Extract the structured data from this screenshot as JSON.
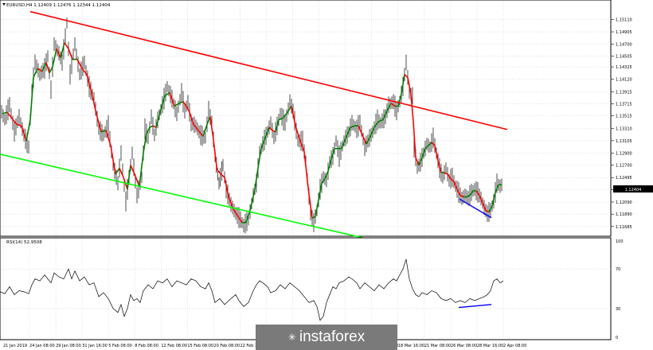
{
  "chart_data": [
    {
      "type": "line",
      "title": "EURUSD,H4 1.12409 1.12476 1.12344 1.12404",
      "ylim": [
        1.1159,
        1.153
      ],
      "y_ticks": [
        "1.15110",
        "1.14905",
        "1.14700",
        "1.14505",
        "1.14325",
        "1.14120",
        "1.13915",
        "1.13715",
        "1.13515",
        "1.13310",
        "1.13105",
        "1.12900",
        "1.12700",
        "1.12495",
        "1.12295",
        "1.12090",
        "1.11890",
        "1.11685"
      ],
      "x_ticks": [
        "21 Jan 2019",
        "24 Jan 08:00",
        "29 Jan 08:00",
        "31 Jan 16:00",
        "5 Feb 08:00",
        "8 Feb 08:00",
        "12 Feb 08:00",
        "15 Feb 08:00",
        "20 Feb 08:00",
        "22 Feb 16:00",
        "27 Feb 16:00",
        "4 Mar 08:00",
        "6 Mar 16:00",
        "11 Mar 08:00",
        "14 Mar 00:00",
        "18 Mar 16:00",
        "21 Mar 08:00",
        "26 Mar 08:00",
        "28 Mar 16:00",
        "2 Apr 08:00"
      ],
      "current_price": "1.12404",
      "price_path": [
        [
          0,
          1.1365
        ],
        [
          6,
          1.1345
        ],
        [
          12,
          1.137
        ],
        [
          18,
          1.1325
        ],
        [
          24,
          1.135
        ],
        [
          30,
          1.132
        ],
        [
          36,
          1.13
        ],
        [
          40,
          1.139
        ],
        [
          44,
          1.144
        ],
        [
          50,
          1.142
        ],
        [
          56,
          1.143
        ],
        [
          60,
          1.145
        ],
        [
          64,
          1.1395
        ],
        [
          68,
          1.147
        ],
        [
          74,
          1.1455
        ],
        [
          78,
          1.144
        ],
        [
          84,
          1.1505
        ],
        [
          88,
          1.142
        ],
        [
          94,
          1.147
        ],
        [
          100,
          1.142
        ],
        [
          106,
          1.144
        ],
        [
          112,
          1.14
        ],
        [
          118,
          1.138
        ],
        [
          124,
          1.133
        ],
        [
          130,
          1.132
        ],
        [
          136,
          1.1335
        ],
        [
          142,
          1.127
        ],
        [
          148,
          1.124
        ],
        [
          152,
          1.129
        ],
        [
          158,
          1.121
        ],
        [
          162,
          1.125
        ],
        [
          166,
          1.129
        ],
        [
          172,
          1.122
        ],
        [
          178,
          1.125
        ],
        [
          182,
          1.133
        ],
        [
          186,
          1.1315
        ],
        [
          190,
          1.135
        ],
        [
          194,
          1.132
        ],
        [
          198,
          1.1345
        ],
        [
          204,
          1.137
        ],
        [
          210,
          1.14
        ],
        [
          216,
          1.138
        ],
        [
          222,
          1.1355
        ],
        [
          228,
          1.139
        ],
        [
          232,
          1.136
        ],
        [
          236,
          1.1375
        ],
        [
          240,
          1.134
        ],
        [
          246,
          1.1335
        ],
        [
          252,
          1.132
        ],
        [
          258,
          1.1315
        ],
        [
          262,
          1.136
        ],
        [
          266,
          1.134
        ],
        [
          270,
          1.1285
        ],
        [
          275,
          1.124
        ],
        [
          280,
          1.127
        ],
        [
          284,
          1.123
        ],
        [
          290,
          1.1205
        ],
        [
          296,
          1.119
        ],
        [
          302,
          1.118
        ],
        [
          306,
          1.117
        ],
        [
          312,
          1.118
        ],
        [
          318,
          1.122
        ],
        [
          322,
          1.124
        ],
        [
          326,
          1.129
        ],
        [
          330,
          1.1305
        ],
        [
          336,
          1.1325
        ],
        [
          340,
          1.134
        ],
        [
          344,
          1.1315
        ],
        [
          348,
          1.1335
        ],
        [
          352,
          1.1355
        ],
        [
          358,
          1.134
        ],
        [
          364,
          1.1375
        ],
        [
          368,
          1.136
        ],
        [
          374,
          1.131
        ],
        [
          380,
          1.131
        ],
        [
          384,
          1.1275
        ],
        [
          390,
          1.119
        ],
        [
          394,
          1.1175
        ],
        [
          398,
          1.1195
        ],
        [
          402,
          1.123
        ],
        [
          406,
          1.125
        ],
        [
          410,
          1.1245
        ],
        [
          414,
          1.1275
        ],
        [
          418,
          1.1285
        ],
        [
          422,
          1.131
        ],
        [
          426,
          1.1285
        ],
        [
          432,
          1.131
        ],
        [
          438,
          1.1325
        ],
        [
          442,
          1.134
        ],
        [
          448,
          1.133
        ],
        [
          452,
          1.134
        ],
        [
          458,
          1.13
        ],
        [
          462,
          1.131
        ],
        [
          468,
          1.1325
        ],
        [
          474,
          1.1345
        ],
        [
          478,
          1.134
        ],
        [
          484,
          1.135
        ],
        [
          488,
          1.137
        ],
        [
          494,
          1.1375
        ],
        [
          498,
          1.136
        ],
        [
          502,
          1.1375
        ],
        [
          506,
          1.14
        ],
        [
          510,
          1.144
        ],
        [
          514,
          1.139
        ],
        [
          518,
          1.1385
        ],
        [
          520,
          1.13
        ],
        [
          524,
          1.1265
        ],
        [
          528,
          1.1275
        ],
        [
          532,
          1.129
        ],
        [
          536,
          1.1305
        ],
        [
          540,
          1.13
        ],
        [
          544,
          1.1315
        ],
        [
          548,
          1.129
        ],
        [
          552,
          1.1265
        ],
        [
          556,
          1.125
        ],
        [
          560,
          1.1265
        ],
        [
          564,
          1.1245
        ],
        [
          568,
          1.125
        ],
        [
          572,
          1.1235
        ],
        [
          576,
          1.1225
        ],
        [
          580,
          1.1215
        ],
        [
          584,
          1.122
        ],
        [
          588,
          1.1215
        ],
        [
          592,
          1.1225
        ],
        [
          596,
          1.123
        ],
        [
          600,
          1.1225
        ],
        [
          604,
          1.1215
        ],
        [
          608,
          1.12
        ],
        [
          612,
          1.119
        ],
        [
          616,
          1.1195
        ],
        [
          620,
          1.121
        ],
        [
          624,
          1.124
        ],
        [
          628,
          1.1235
        ],
        [
          632,
          1.124
        ]
      ],
      "channel_top": [
        [
          38,
          1.1524
        ],
        [
          637,
          1.1329
        ]
      ],
      "channel_bottom": [
        [
          0,
          1.1288
        ],
        [
          455,
          1.115
        ]
      ],
      "divergence_price": [
        [
          577,
          1.1214
        ],
        [
          617,
          1.1183
        ]
      ],
      "colors": {
        "upper_line": "#ff0000",
        "lower_line": "#00ff00",
        "divergence": "#0000ff",
        "ma_up": "#008000",
        "ma_down": "#ff0000",
        "price": "#000000",
        "badge_bg": "#000000",
        "badge_text": "#ffffff"
      }
    },
    {
      "type": "line",
      "title": "RSI(14) 52.9508",
      "ylim": [
        0,
        100
      ],
      "y_ticks": [
        "100",
        "70",
        "30",
        "0"
      ],
      "rsi_path": [
        [
          0,
          47
        ],
        [
          6,
          45
        ],
        [
          12,
          52
        ],
        [
          18,
          44
        ],
        [
          24,
          48
        ],
        [
          30,
          47
        ],
        [
          36,
          45
        ],
        [
          40,
          54
        ],
        [
          44,
          60
        ],
        [
          50,
          58
        ],
        [
          56,
          64
        ],
        [
          60,
          60
        ],
        [
          64,
          56
        ],
        [
          68,
          66
        ],
        [
          74,
          62
        ],
        [
          80,
          60
        ],
        [
          86,
          70
        ],
        [
          90,
          60
        ],
        [
          94,
          68
        ],
        [
          100,
          58
        ],
        [
          106,
          62
        ],
        [
          112,
          54
        ],
        [
          118,
          56
        ],
        [
          124,
          42
        ],
        [
          130,
          46
        ],
        [
          136,
          40
        ],
        [
          142,
          30
        ],
        [
          148,
          26
        ],
        [
          152,
          34
        ],
        [
          156,
          22
        ],
        [
          160,
          30
        ],
        [
          164,
          44
        ],
        [
          168,
          38
        ],
        [
          172,
          40
        ],
        [
          176,
          36
        ],
        [
          180,
          48
        ],
        [
          186,
          54
        ],
        [
          192,
          50
        ],
        [
          198,
          58
        ],
        [
          204,
          56
        ],
        [
          210,
          60
        ],
        [
          216,
          52
        ],
        [
          222,
          58
        ],
        [
          228,
          56
        ],
        [
          234,
          54
        ],
        [
          240,
          60
        ],
        [
          246,
          58
        ],
        [
          252,
          52
        ],
        [
          258,
          50
        ],
        [
          262,
          56
        ],
        [
          266,
          48
        ],
        [
          270,
          36
        ],
        [
          276,
          40
        ],
        [
          282,
          34
        ],
        [
          290,
          40
        ],
        [
          296,
          44
        ],
        [
          300,
          38
        ],
        [
          306,
          32
        ],
        [
          312,
          36
        ],
        [
          318,
          48
        ],
        [
          322,
          54
        ],
        [
          326,
          58
        ],
        [
          330,
          56
        ],
        [
          336,
          52
        ],
        [
          340,
          46
        ],
        [
          346,
          48
        ],
        [
          352,
          54
        ],
        [
          358,
          50
        ],
        [
          364,
          56
        ],
        [
          370,
          52
        ],
        [
          376,
          48
        ],
        [
          382,
          42
        ],
        [
          388,
          36
        ],
        [
          394,
          38
        ],
        [
          398,
          32
        ],
        [
          402,
          18
        ],
        [
          406,
          22
        ],
        [
          410,
          36
        ],
        [
          414,
          44
        ],
        [
          418,
          52
        ],
        [
          422,
          50
        ],
        [
          426,
          56
        ],
        [
          432,
          58
        ],
        [
          438,
          62
        ],
        [
          442,
          60
        ],
        [
          448,
          56
        ],
        [
          452,
          50
        ],
        [
          458,
          56
        ],
        [
          464,
          52
        ],
        [
          470,
          48
        ],
        [
          476,
          54
        ],
        [
          482,
          50
        ],
        [
          488,
          56
        ],
        [
          494,
          60
        ],
        [
          498,
          58
        ],
        [
          502,
          64
        ],
        [
          506,
          70
        ],
        [
          510,
          80
        ],
        [
          514,
          60
        ],
        [
          518,
          50
        ],
        [
          522,
          44
        ],
        [
          526,
          42
        ],
        [
          530,
          46
        ],
        [
          536,
          44
        ],
        [
          542,
          48
        ],
        [
          548,
          46
        ],
        [
          554,
          40
        ],
        [
          560,
          38
        ],
        [
          566,
          40
        ],
        [
          572,
          36
        ],
        [
          578,
          38
        ],
        [
          584,
          36
        ],
        [
          590,
          40
        ],
        [
          596,
          38
        ],
        [
          602,
          40
        ],
        [
          608,
          42
        ],
        [
          612,
          44
        ],
        [
          616,
          48
        ],
        [
          620,
          58
        ],
        [
          624,
          60
        ],
        [
          628,
          56
        ],
        [
          632,
          58
        ]
      ],
      "divergence_rsi": [
        [
          576,
          31
        ],
        [
          617,
          34
        ]
      ]
    }
  ],
  "watermark": {
    "label": "instaforex"
  }
}
